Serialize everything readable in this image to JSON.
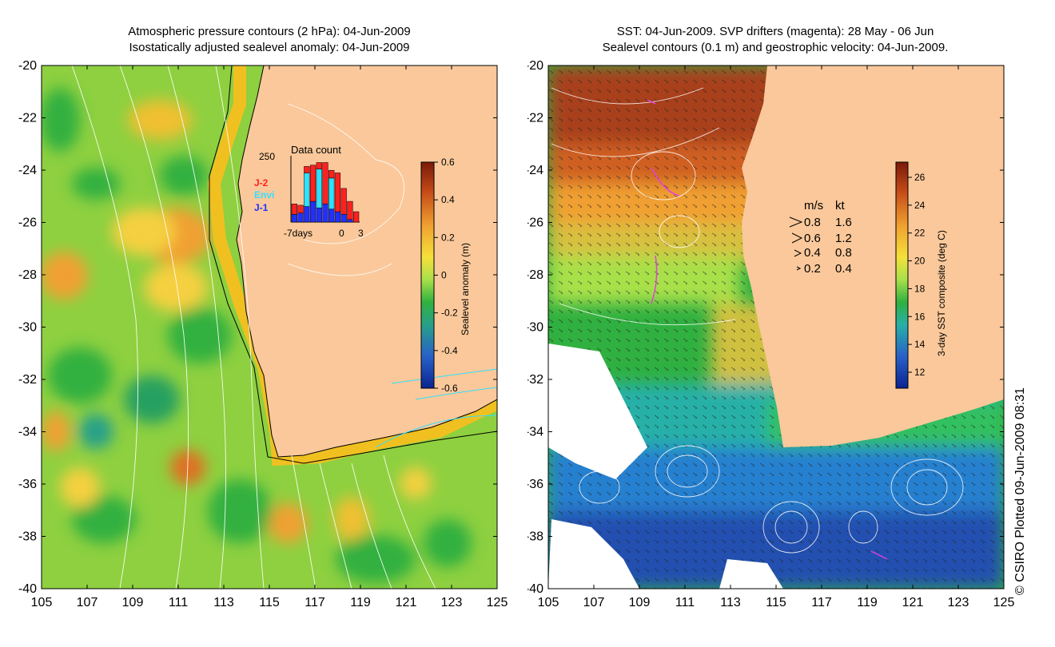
{
  "left_panel": {
    "title_line1": "Atmospheric pressure contours (2 hPa): 04-Jun-2009",
    "title_line2": "Isostatically adjusted sealevel anomaly: 04-Jun-2009",
    "colorbar": {
      "label": "Sealevel anomaly (m)",
      "ticks": [
        "0.6",
        "0.4",
        "0.2",
        "0",
        "-0.2",
        "-0.4",
        "-0.6"
      ],
      "colors": [
        "#7a1a0a",
        "#c44a18",
        "#f0a030",
        "#f5e03a",
        "#a8e04a",
        "#30b040",
        "#28a088",
        "#2860c8",
        "#0a2490"
      ]
    },
    "inset": {
      "title": "Data count",
      "ymax_label": "250",
      "x_labels": [
        "-7days",
        "0",
        "3"
      ],
      "legend": [
        {
          "label": "J-2",
          "color": "#ff2020"
        },
        {
          "label": "Envi",
          "color": "#30e0ff"
        },
        {
          "label": "J-1",
          "color": "#2030ff"
        }
      ],
      "chart_data": {
        "type": "bar",
        "title": "Data count",
        "ylim": [
          0,
          250
        ],
        "series": [
          {
            "name": "J-1",
            "values": [
              30,
              35,
              60,
              80,
              55,
              70,
              50,
              40,
              30,
              10,
              0
            ]
          },
          {
            "name": "Envi",
            "values": [
              0,
              0,
              130,
              0,
              150,
              0,
              120,
              0,
              0,
              0,
              0
            ]
          },
          {
            "name": "J-2",
            "values": [
              40,
              30,
              25,
              140,
              25,
              160,
              30,
              150,
              100,
              70,
              40
            ]
          }
        ]
      }
    }
  },
  "right_panel": {
    "title_line1": "SST: 04-Jun-2009. SVP drifters (magenta): 28 May - 06 Jun",
    "title_line2": "Sealevel contours (0.1 m) and geostrophic velocity: 04-Jun-2009.",
    "colorbar": {
      "label": "3-day SST composite (deg C)",
      "ticks": [
        "26",
        "24",
        "22",
        "20",
        "18",
        "16",
        "14",
        "12"
      ],
      "colors": [
        "#7a1a0a",
        "#c44a18",
        "#f0a030",
        "#f5e03a",
        "#a8e04a",
        "#30b040",
        "#28b0a8",
        "#2860c8",
        "#0a2490"
      ]
    },
    "velocity_legend": {
      "header_ms": "m/s",
      "header_kt": "kt",
      "rows": [
        {
          "ms": "0.8",
          "kt": "1.6"
        },
        {
          "ms": "0.6",
          "kt": "1.2"
        },
        {
          "ms": "0.4",
          "kt": "0.8"
        },
        {
          "ms": "0.2",
          "kt": "0.4"
        }
      ]
    }
  },
  "axes": {
    "lat_labels": [
      "-20",
      "-22",
      "-24",
      "-26",
      "-28",
      "-30",
      "-32",
      "-34",
      "-36",
      "-38",
      "-40"
    ],
    "lon_labels": [
      "105",
      "107",
      "109",
      "111",
      "113",
      "115",
      "117",
      "119",
      "121",
      "123",
      "125"
    ]
  },
  "colors": {
    "land": "#fac89a",
    "ocean_base": "#8ed040",
    "drifter": "#e040e0",
    "contour": "#ffffff"
  },
  "credit": "© CSIRO Plotted 09-Jun-2009 08:31"
}
